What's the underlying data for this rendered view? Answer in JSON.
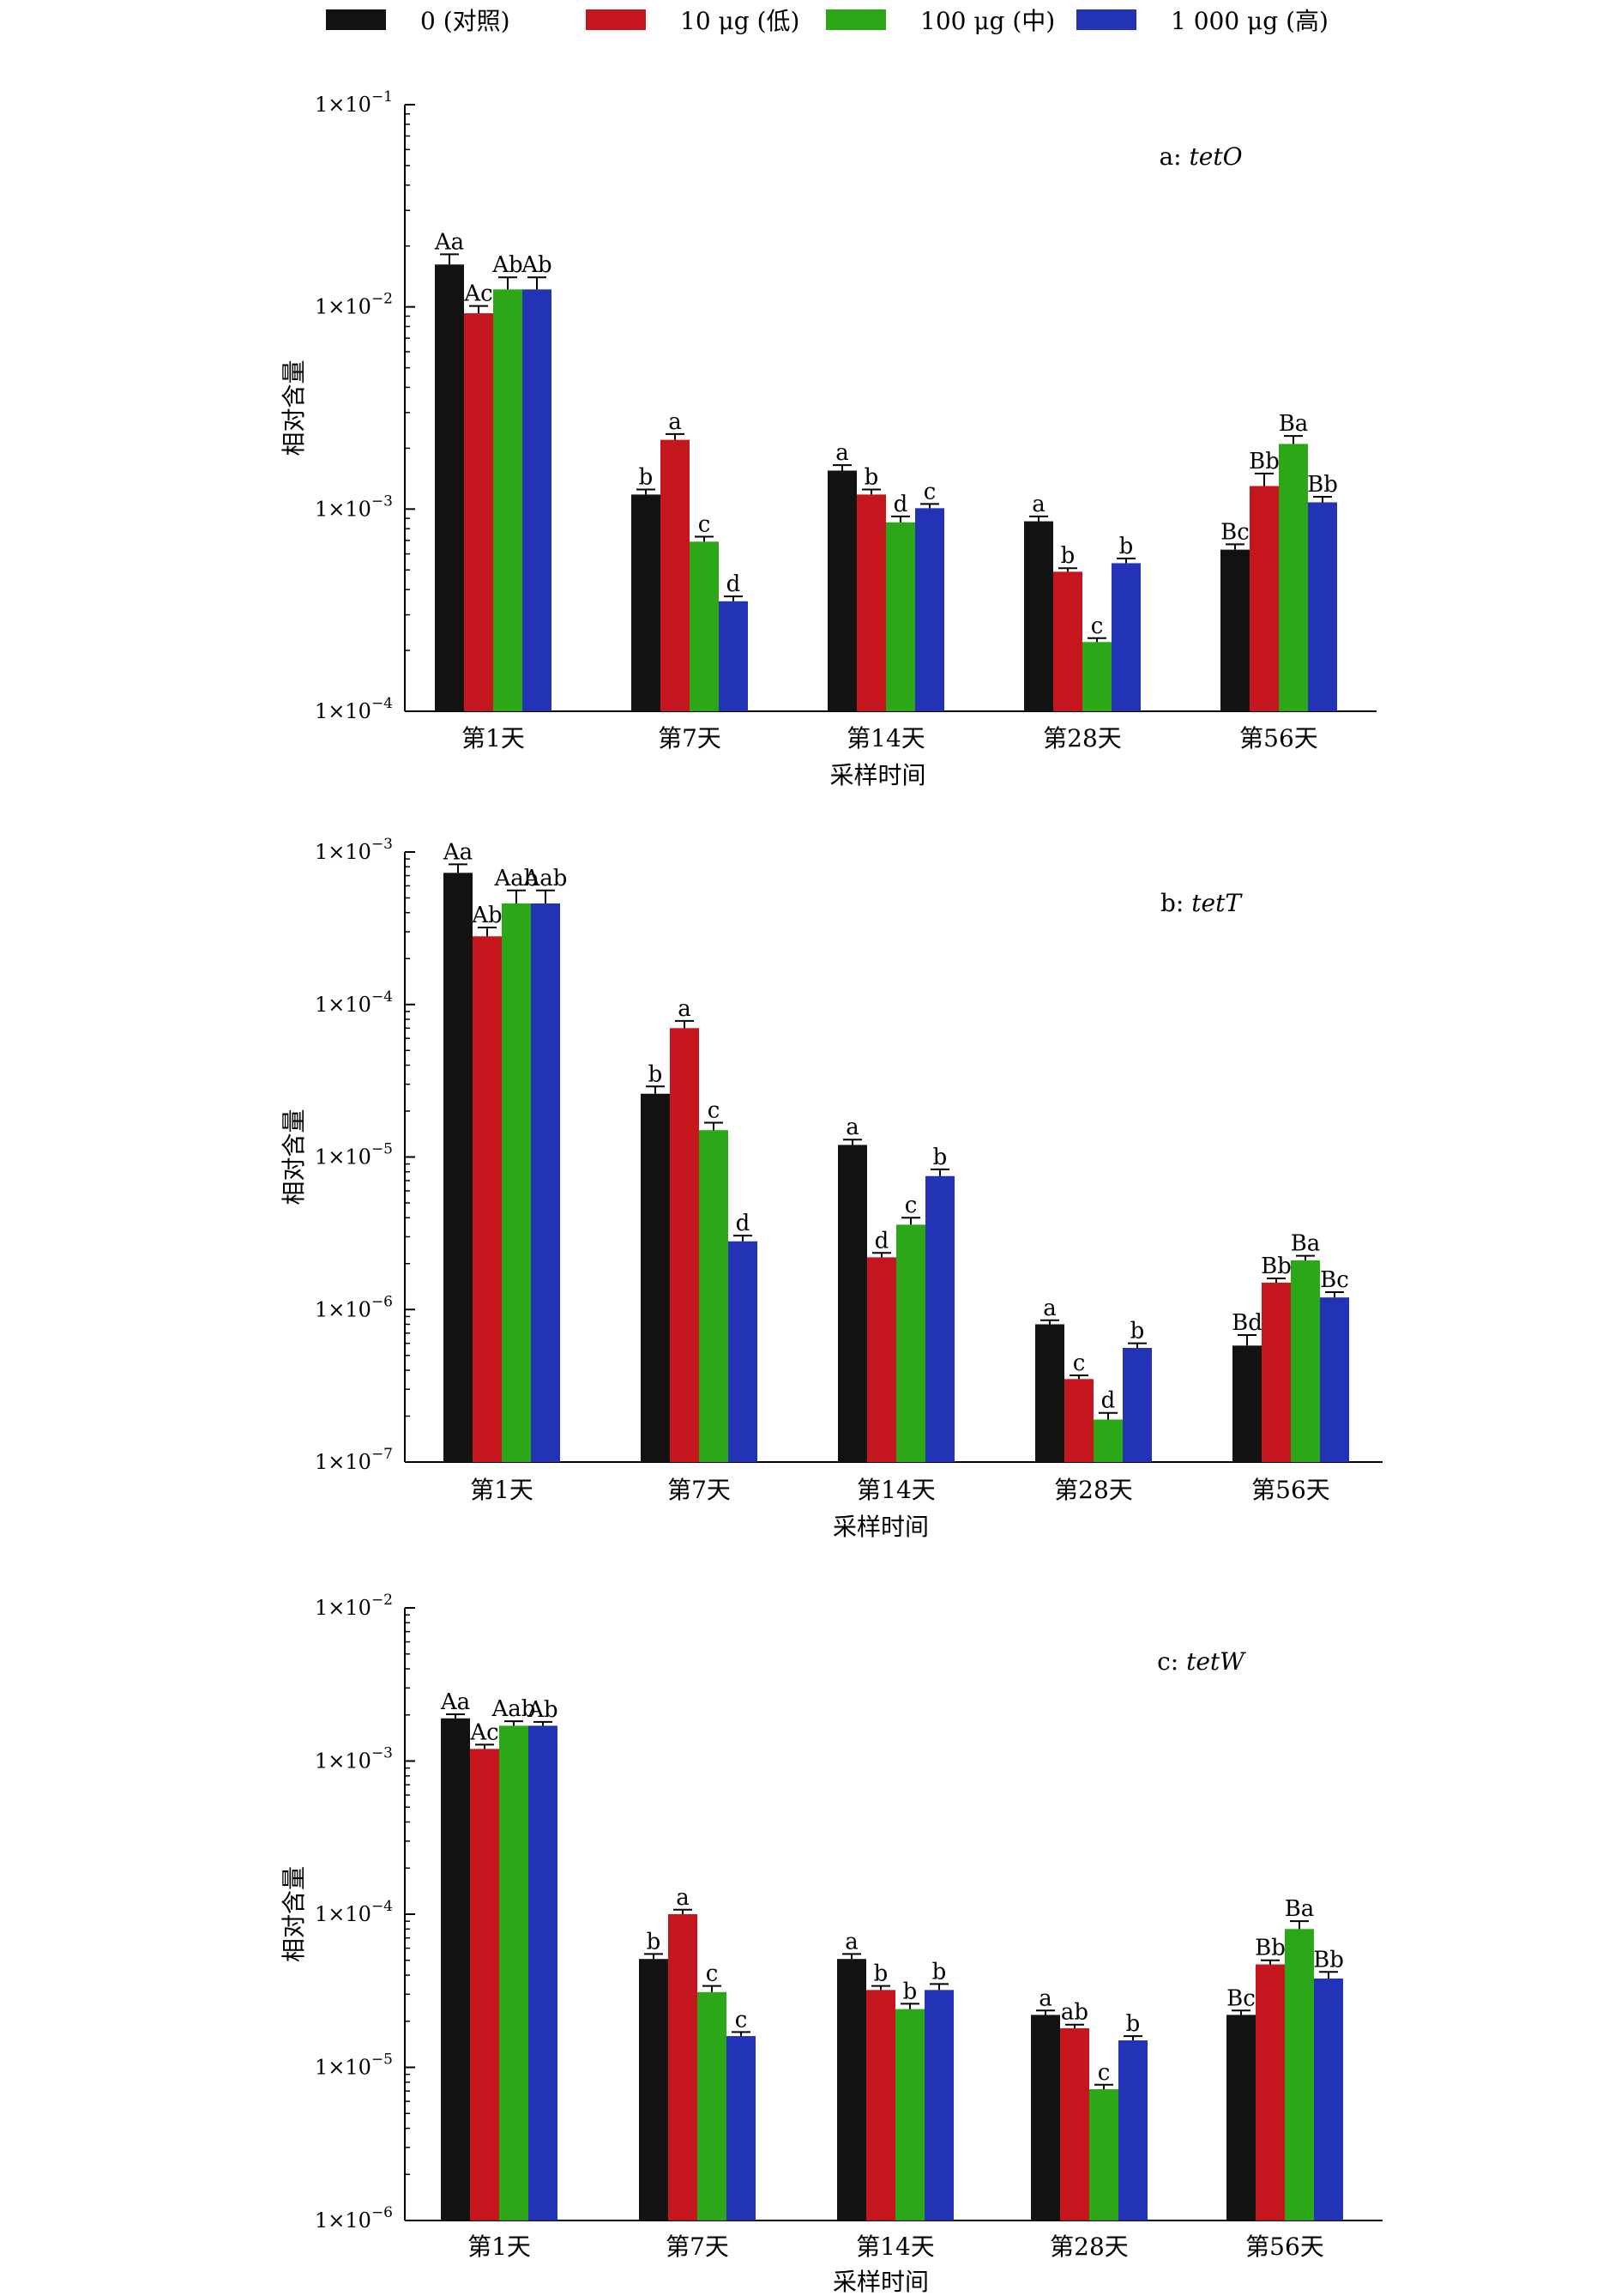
{
  "legend": [
    {
      "label": "0 (对照)",
      "color": "#121212"
    },
    {
      "label": "10 μg (低)",
      "color": "#c4161c"
    },
    {
      "label": "100 μg (中)",
      "color": "#2ba718"
    },
    {
      "label": "1 000 μg (高)",
      "color": "#2233b5"
    }
  ],
  "chart_data": [
    {
      "type": "bar",
      "panel_label": "a: ",
      "gene": "tetO",
      "ylabel": "相对含量",
      "xlabel": "采样时间",
      "yscale": "log",
      "ylim": [
        0.0001,
        0.1
      ],
      "yticks": [
        {
          "value": 0.1,
          "base": "1×10",
          "exp": "−1"
        },
        {
          "value": 0.01,
          "base": "1×10",
          "exp": "−2"
        },
        {
          "value": 0.001,
          "base": "1×10",
          "exp": "−3"
        },
        {
          "value": 0.0001,
          "base": "1×10",
          "exp": "−4"
        }
      ],
      "categories": [
        "第1天",
        "第7天",
        "第14天",
        "第28天",
        "第56天"
      ],
      "series": [
        {
          "name": "0 (对照)",
          "values": [
            0.0162,
            0.00118,
            0.00155,
            0.00087,
            0.00063
          ],
          "errors": [
            0.002,
            7e-05,
            0.0001,
            5e-05,
            4e-05
          ],
          "labels": [
            "Aa",
            "b",
            "a",
            "a",
            "Bc"
          ]
        },
        {
          "name": "10 μg (低)",
          "values": [
            0.0093,
            0.0022,
            0.00118,
            0.00049,
            0.0013
          ],
          "errors": [
            0.0008,
            0.00015,
            7e-05,
            2e-05,
            0.0002
          ],
          "labels": [
            "Ac",
            "a",
            "b",
            "b",
            "Bb"
          ]
        },
        {
          "name": "100 μg (中)",
          "values": [
            0.0122,
            0.00069,
            0.00086,
            0.00022,
            0.0021
          ],
          "errors": [
            0.0018,
            4e-05,
            6e-05,
            1e-05,
            0.0002
          ],
          "labels": [
            "Ab",
            "c",
            "d",
            "c",
            "Ba"
          ]
        },
        {
          "name": "1 000 μg (高)",
          "values": [
            0.0122,
            0.00035,
            0.00101,
            0.00054,
            0.00108
          ],
          "errors": [
            0.0018,
            2e-05,
            5e-05,
            3e-05,
            7e-05
          ],
          "labels": [
            "Ab",
            "d",
            "c",
            "b",
            "Bb"
          ]
        }
      ]
    },
    {
      "type": "bar",
      "panel_label": "b: ",
      "gene": "tetT",
      "ylabel": "相对含量",
      "xlabel": "采样时间",
      "yscale": "log",
      "ylim": [
        1e-07,
        0.001
      ],
      "yticks": [
        {
          "value": 0.001,
          "base": "1×10",
          "exp": "−3"
        },
        {
          "value": 0.0001,
          "base": "1×10",
          "exp": "−4"
        },
        {
          "value": 1e-05,
          "base": "1×10",
          "exp": "−5"
        },
        {
          "value": 1e-06,
          "base": "1×10",
          "exp": "−6"
        },
        {
          "value": 1e-07,
          "base": "1×10",
          "exp": "−7"
        }
      ],
      "categories": [
        "第1天",
        "第7天",
        "第14天",
        "第28天",
        "第56天"
      ],
      "series": [
        {
          "name": "0 (对照)",
          "values": [
            0.00073,
            2.6e-05,
            1.2e-05,
            8e-07,
            5.8e-07
          ],
          "errors": [
            0.0001,
            3e-06,
            1e-06,
            5e-08,
            1e-07
          ],
          "labels": [
            "Aa",
            "b",
            "a",
            "a",
            "Bd"
          ]
        },
        {
          "name": "10 μg (低)",
          "values": [
            0.00028,
            7e-05,
            2.2e-06,
            3.5e-07,
            1.5e-06
          ],
          "errors": [
            4e-05,
            8e-06,
            1.5e-07,
            2e-08,
            1e-07
          ],
          "labels": [
            "Ab",
            "a",
            "d",
            "c",
            "Bb"
          ]
        },
        {
          "name": "100 μg (中)",
          "values": [
            0.00046,
            1.5e-05,
            3.6e-06,
            1.9e-07,
            2.1e-06
          ],
          "errors": [
            0.0001,
            1.8e-06,
            4e-07,
            2e-08,
            1.5e-07
          ],
          "labels": [
            "Aab",
            "c",
            "c",
            "d",
            "Ba"
          ]
        },
        {
          "name": "1 000 μg (高)",
          "values": [
            0.00046,
            2.8e-06,
            7.5e-06,
            5.6e-07,
            1.2e-06
          ],
          "errors": [
            0.0001,
            2.5e-07,
            8e-07,
            4e-08,
            1e-07
          ],
          "labels": [
            "Aab",
            "d",
            "b",
            "b",
            "Bc"
          ]
        }
      ]
    },
    {
      "type": "bar",
      "panel_label": "c: ",
      "gene": "tetW",
      "ylabel": "相对含量",
      "xlabel": "采样时间",
      "yscale": "log",
      "ylim": [
        1e-06,
        0.01
      ],
      "yticks": [
        {
          "value": 0.01,
          "base": "1×10",
          "exp": "−2"
        },
        {
          "value": 0.001,
          "base": "1×10",
          "exp": "−3"
        },
        {
          "value": 0.0001,
          "base": "1×10",
          "exp": "−4"
        },
        {
          "value": 1e-05,
          "base": "1×10",
          "exp": "−5"
        },
        {
          "value": 1e-06,
          "base": "1×10",
          "exp": "−6"
        }
      ],
      "categories": [
        "第1天",
        "第7天",
        "第14天",
        "第28天",
        "第56天"
      ],
      "series": [
        {
          "name": "0 (对照)",
          "values": [
            0.0019,
            5.1e-05,
            5.1e-05,
            2.2e-05,
            2.2e-05
          ],
          "errors": [
            0.00012,
            4e-06,
            4e-06,
            1.5e-06,
            1.5e-06
          ],
          "labels": [
            "Aa",
            "b",
            "a",
            "a",
            "Bc"
          ]
        },
        {
          "name": "10 μg (低)",
          "values": [
            0.0012,
            0.0001,
            3.2e-05,
            1.8e-05,
            4.7e-05
          ],
          "errors": [
            8e-05,
            7e-06,
            2e-06,
            1e-06,
            3e-06
          ],
          "labels": [
            "Ac",
            "a",
            "b",
            "ab",
            "Bb"
          ]
        },
        {
          "name": "100 μg (中)",
          "values": [
            0.0017,
            3.1e-05,
            2.4e-05,
            7.2e-06,
            8e-05
          ],
          "errors": [
            0.00012,
            3e-06,
            2e-06,
            5e-07,
            1e-05
          ],
          "labels": [
            "Aab",
            "c",
            "b",
            "c",
            "Ba"
          ]
        },
        {
          "name": "1 000 μg (高)",
          "values": [
            0.0017,
            1.6e-05,
            3.2e-05,
            1.5e-05,
            3.8e-05
          ],
          "errors": [
            0.0001,
            1e-06,
            3e-06,
            1e-06,
            4e-06
          ],
          "labels": [
            "Ab",
            "c",
            "b",
            "b",
            "Bb"
          ]
        }
      ]
    }
  ]
}
